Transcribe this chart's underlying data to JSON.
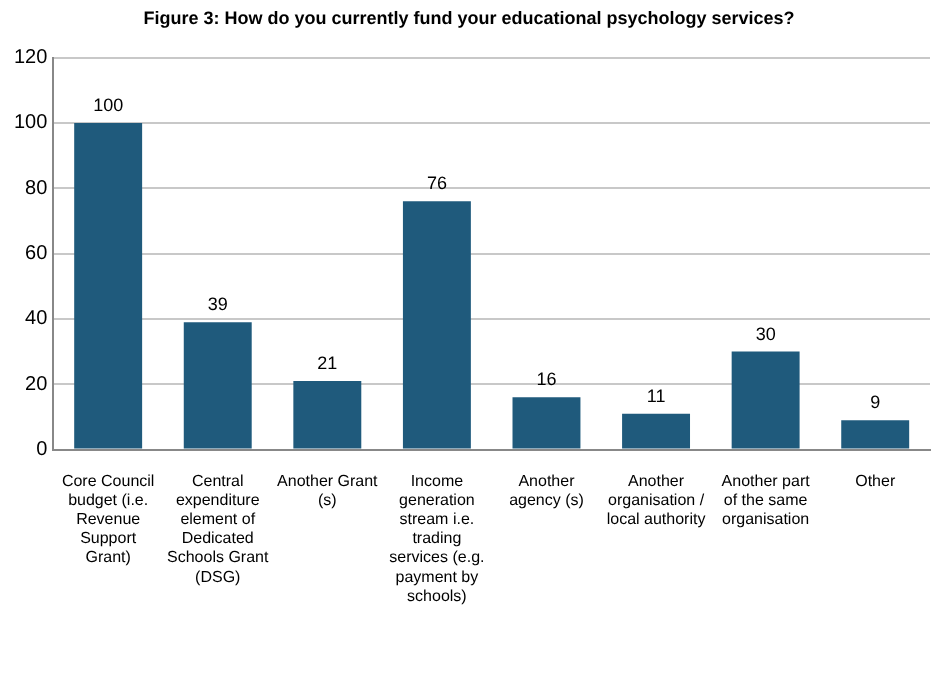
{
  "chart_data": {
    "type": "bar",
    "title": "Figure 3: How do you currently fund your educational psychology services?",
    "categories": [
      "Core Council budget (i.e. Revenue Support Grant)",
      "Central expenditure element of Dedicated Schools Grant (DSG)",
      "Another Grant (s)",
      "Income generation stream i.e. trading services (e.g. payment by schools)",
      "Another agency (s)",
      "Another organisation / local authority",
      "Another part of the same organisation",
      "Other"
    ],
    "values": [
      100,
      39,
      21,
      76,
      16,
      11,
      30,
      9
    ],
    "color": "#1f5a7c",
    "ylim": [
      0,
      120
    ],
    "yticks": [
      0,
      20,
      40,
      60,
      80,
      100,
      120
    ],
    "grid": "y",
    "data_labels": true
  }
}
